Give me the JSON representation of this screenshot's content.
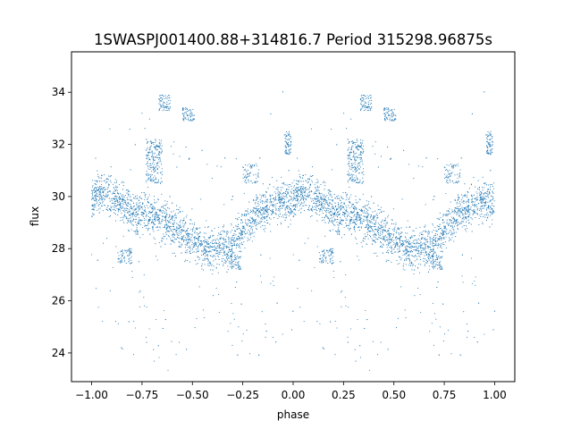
{
  "chart_data": {
    "type": "scatter",
    "title": "1SWASPJ001400.88+314816.7 Period 315298.96875s",
    "xlabel": "phase",
    "ylabel": "flux",
    "xlim": [
      -1.1,
      1.1
    ],
    "ylim": [
      22.9,
      35.55
    ],
    "xticks": [
      "−1.00",
      "−0.75",
      "−0.50",
      "−0.25",
      "0.00",
      "0.25",
      "0.50",
      "0.75",
      "1.00"
    ],
    "xtick_values": [
      -1.0,
      -0.75,
      -0.5,
      -0.25,
      0.0,
      0.25,
      0.5,
      0.75,
      1.0
    ],
    "yticks": [
      "24",
      "26",
      "28",
      "30",
      "32",
      "34"
    ],
    "ytick_values": [
      24,
      26,
      28,
      30,
      32,
      34
    ],
    "grid": false,
    "point_color": "#1f77b4",
    "symmetry": "data mirrored: phase p and p-1 carry identical flux",
    "trend": {
      "x": [
        0.0,
        0.04,
        0.1,
        0.16,
        0.22,
        0.3,
        0.4,
        0.48,
        0.55,
        0.62,
        0.7,
        0.78,
        0.85,
        0.92,
        1.0
      ],
      "y": [
        29.9,
        30.2,
        30.0,
        29.7,
        29.3,
        29.3,
        28.9,
        28.4,
        28.0,
        28.0,
        28.2,
        29.0,
        29.5,
        29.8,
        29.9
      ]
    },
    "clusters": [
      {
        "x": [
          0.27,
          0.35
        ],
        "y": [
          30.5,
          32.2
        ],
        "note": "upper branch"
      },
      {
        "x": [
          0.33,
          0.39
        ],
        "y": [
          33.3,
          33.9
        ]
      },
      {
        "x": [
          0.45,
          0.51
        ],
        "y": [
          32.9,
          33.4
        ]
      },
      {
        "x": [
          0.13,
          0.2
        ],
        "y": [
          27.4,
          28.0
        ]
      },
      {
        "x": [
          0.66,
          0.74
        ],
        "y": [
          27.2,
          27.8
        ]
      },
      {
        "x": [
          0.75,
          0.83
        ],
        "y": [
          30.5,
          31.3
        ]
      },
      {
        "x": [
          0.96,
          0.99
        ],
        "y": [
          31.6,
          32.5
        ]
      }
    ]
  }
}
